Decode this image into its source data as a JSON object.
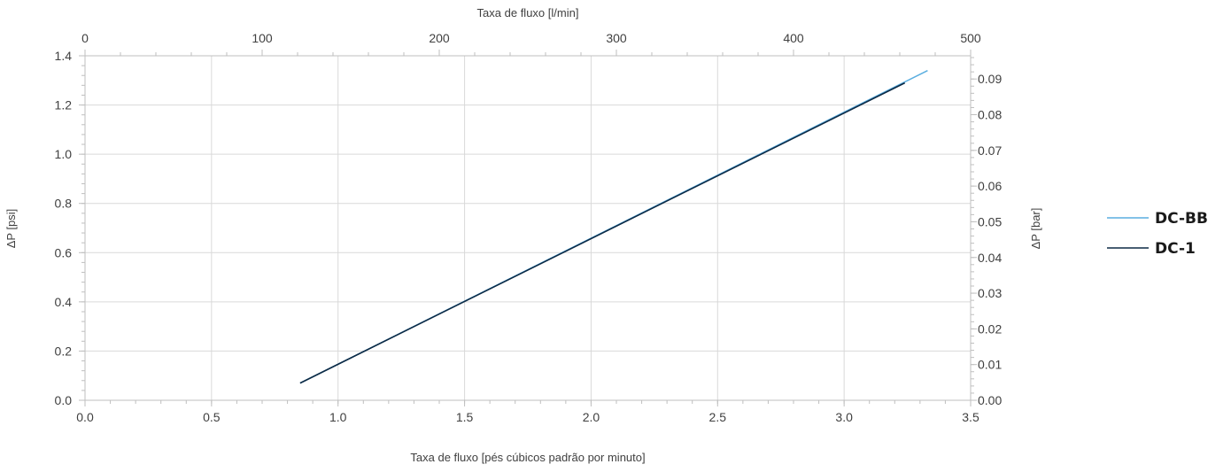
{
  "chart_data": {
    "type": "line",
    "title": "",
    "x_bottom": {
      "label": "Taxa de fluxo [pés cúbicos padrão por minuto]",
      "range": [
        0.0,
        3.5
      ],
      "ticks": [
        "0.0",
        "0.5",
        "1.0",
        "1.5",
        "2.0",
        "2.5",
        "3.0",
        "3.5"
      ]
    },
    "x_top": {
      "label": "Taxa de fluxo [l/min]",
      "range": [
        0,
        500
      ],
      "ticks": [
        "0",
        "100",
        "200",
        "300",
        "400",
        "500"
      ]
    },
    "y_left": {
      "label": "ΔP [psi]",
      "range": [
        0.0,
        1.4
      ],
      "ticks": [
        "0.0",
        "0.2",
        "0.4",
        "0.6",
        "0.8",
        "1.0",
        "1.2",
        "1.4"
      ]
    },
    "y_right": {
      "label": "ΔP [bar]",
      "range": [
        0.0,
        0.0965
      ],
      "ticks": [
        "0.00",
        "0.01",
        "0.02",
        "0.03",
        "0.04",
        "0.05",
        "0.06",
        "0.07",
        "0.08",
        "0.09"
      ]
    },
    "grid": true,
    "legend_position": "right",
    "series": [
      {
        "name": "DC-BB",
        "color": "#5aaee0",
        "x": [
          0.85,
          3.33
        ],
        "y": [
          0.07,
          1.34
        ]
      },
      {
        "name": "DC-1",
        "color": "#0d2a45",
        "x": [
          0.85,
          3.24
        ],
        "y": [
          0.07,
          1.29
        ]
      }
    ]
  }
}
